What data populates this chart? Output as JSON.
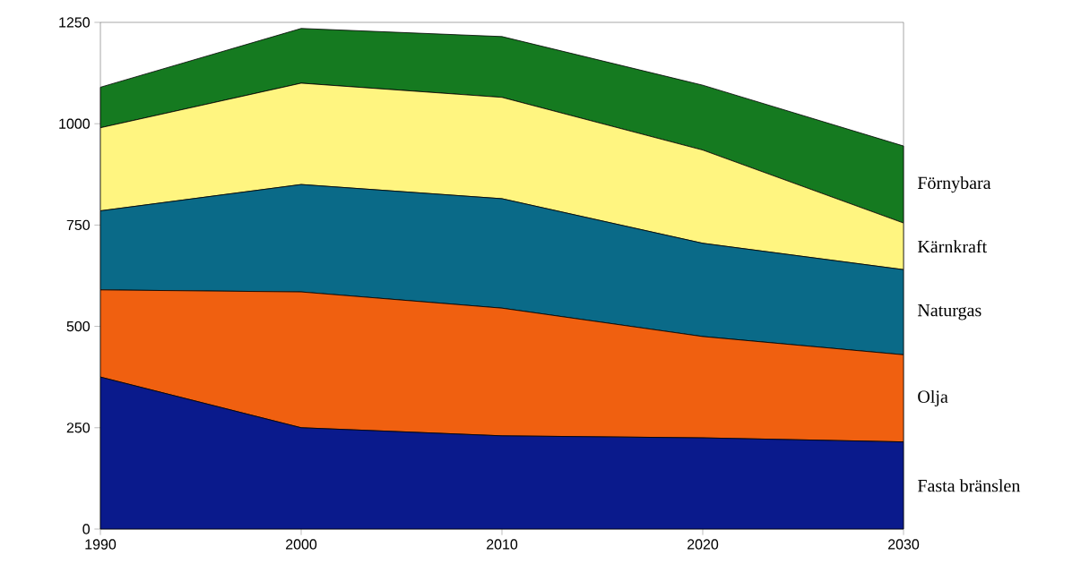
{
  "chart_data": {
    "type": "area",
    "stacked": true,
    "x": [
      1990,
      2000,
      2010,
      2020,
      2030
    ],
    "series": [
      {
        "name": "Fasta bränslen",
        "color": "#0a1a8c",
        "values": [
          375,
          250,
          230,
          225,
          215
        ]
      },
      {
        "name": "Olja",
        "color": "#f06010",
        "values": [
          215,
          335,
          315,
          250,
          215
        ]
      },
      {
        "name": "Naturgas",
        "color": "#0a6a88",
        "values": [
          195,
          265,
          270,
          230,
          210
        ]
      },
      {
        "name": "Kärnkraft",
        "color": "#fff580",
        "values": [
          205,
          250,
          250,
          230,
          115
        ]
      },
      {
        "name": "Förnybara",
        "color": "#157a20",
        "values": [
          100,
          135,
          150,
          160,
          190
        ]
      }
    ],
    "xlim": [
      1990,
      2030
    ],
    "ylim": [
      0,
      1250
    ],
    "xticks": [
      1990,
      2000,
      2010,
      2020,
      2030
    ],
    "yticks": [
      0,
      250,
      500,
      750,
      1000,
      1250
    ]
  }
}
